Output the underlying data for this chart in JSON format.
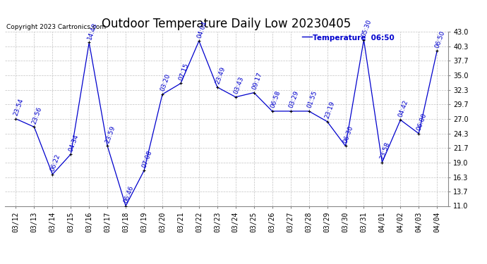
{
  "title": "Outdoor Temperature Daily Low 20230405",
  "copyright": "Copyright 2023 Cartronics.com",
  "legend_label": "Temperature",
  "legend_time": "06:50",
  "x_labels": [
    "03/12",
    "03/13",
    "03/14",
    "03/15",
    "03/16",
    "03/17",
    "03/18",
    "03/19",
    "03/20",
    "03/21",
    "03/22",
    "03/23",
    "03/24",
    "03/25",
    "03/26",
    "03/27",
    "03/28",
    "03/29",
    "03/30",
    "03/31",
    "04/01",
    "04/02",
    "04/03",
    "04/04"
  ],
  "y_values": [
    27.0,
    25.5,
    16.8,
    20.5,
    41.0,
    22.0,
    11.0,
    17.5,
    31.5,
    33.5,
    41.3,
    32.8,
    31.0,
    31.8,
    28.4,
    28.4,
    28.4,
    26.5,
    22.0,
    41.5,
    19.0,
    26.8,
    24.3,
    39.5
  ],
  "annotations": [
    "23:54",
    "23:56",
    "06:22",
    "04:34",
    "14:48",
    "23:59",
    "06:46",
    "07:08",
    "03:20",
    "07:15",
    "04:04",
    "23:49",
    "03:43",
    "09:17",
    "06:58",
    "03:29",
    "01:55",
    "23:19",
    "06:30",
    "05:30",
    "23:58",
    "04:42",
    "06:00",
    "06:50"
  ],
  "line_color": "#0000cd",
  "dot_color": "#000000",
  "text_color": "#0000cd",
  "bg_color": "#ffffff",
  "grid_color": "#bbbbbb",
  "ylim": [
    11.0,
    43.0
  ],
  "yticks": [
    11.0,
    13.7,
    16.3,
    19.0,
    21.7,
    24.3,
    27.0,
    29.7,
    32.3,
    35.0,
    37.7,
    40.3,
    43.0
  ],
  "title_fontsize": 12,
  "tick_fontsize": 7,
  "annot_fontsize": 6.5,
  "copyright_fontsize": 6.5
}
